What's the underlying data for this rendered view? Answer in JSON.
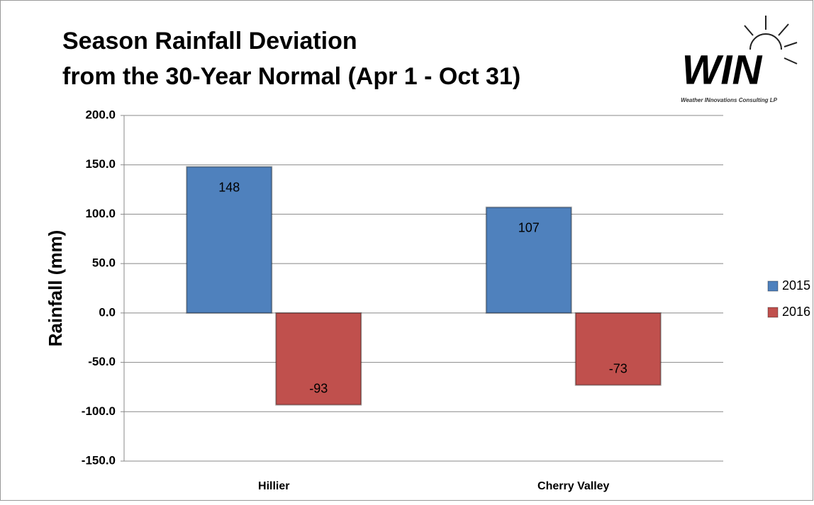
{
  "chart_data": {
    "type": "bar",
    "title": [
      "Season Rainfall Deviation",
      "from the 30-Year Normal (Apr 1 - Oct 31)"
    ],
    "y_label": "Rainfall (mm)",
    "categories": [
      "Hillier",
      "Cherry Valley"
    ],
    "series": [
      {
        "name": "2015",
        "color": "#4f81bd",
        "values": [
          148,
          107
        ]
      },
      {
        "name": "2016",
        "color": "#c0504d",
        "values": [
          -93,
          -73
        ]
      }
    ],
    "ylim": [
      -150,
      200
    ],
    "yticks": [
      {
        "value": -150,
        "label": "-150.0"
      },
      {
        "value": -100,
        "label": "-100.0"
      },
      {
        "value": -50,
        "label": "-50.0"
      },
      {
        "value": 0,
        "label": "0.0"
      },
      {
        "value": 50,
        "label": "50.0"
      },
      {
        "value": 100,
        "label": "100.0"
      },
      {
        "value": 150,
        "label": "150.0"
      },
      {
        "value": 200,
        "label": "200.0"
      }
    ],
    "grid": true,
    "legend": "right"
  },
  "logo": {
    "text": "WIN",
    "tagline": "Weather INnovations Consulting LP"
  }
}
